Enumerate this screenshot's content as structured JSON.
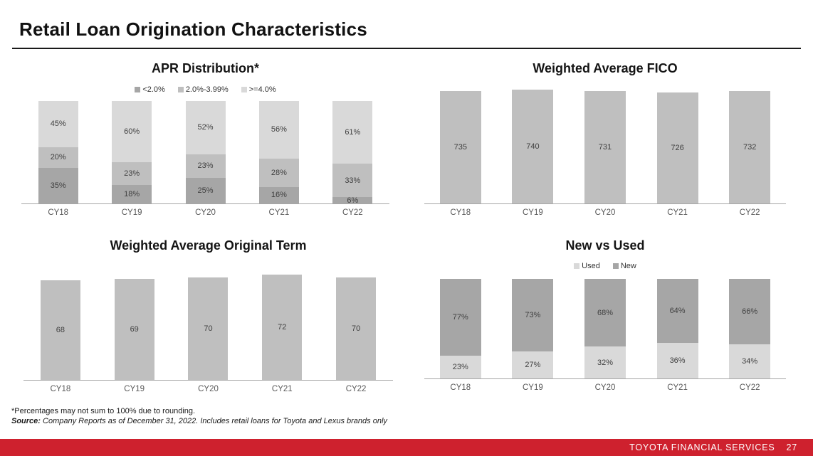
{
  "slide": {
    "title": "Retail Loan Origination Characteristics",
    "footnote": "*Percentages may not sum to 100% due to rounding.",
    "source_label": "Source:",
    "source_text": " Company Reports as of December 31, 2022. Includes retail loans for Toyota and Lexus brands only",
    "footer_brand": "TOYOTA FINANCIAL SERVICES",
    "page_number": "27",
    "accent_red": "#ce212e"
  },
  "colors": {
    "dark": "#a6a6a6",
    "mid": "#bfbfbf",
    "light": "#d9d9d9",
    "bar": "#bfbfbf",
    "axis": "#a6a6a6",
    "value_label": "#404040",
    "tick_label": "#595959"
  },
  "chart_data": [
    {
      "id": "apr",
      "type": "bar",
      "stacked": true,
      "percent": true,
      "title": "APR Distribution*",
      "legend_position": "top",
      "value_suffix": "%",
      "categories": [
        "CY18",
        "CY19",
        "CY20",
        "CY21",
        "CY22"
      ],
      "series": [
        {
          "name": "<2.0%",
          "color_key": "dark",
          "values": [
            35,
            18,
            25,
            16,
            6
          ]
        },
        {
          "name": "2.0%-3.99%",
          "color_key": "mid",
          "values": [
            20,
            23,
            23,
            28,
            33
          ]
        },
        {
          "name": ">=4.0%",
          "color_key": "light",
          "values": [
            45,
            60,
            52,
            56,
            61
          ]
        }
      ]
    },
    {
      "id": "fico",
      "type": "bar",
      "stacked": false,
      "title": "Weighted Average FICO",
      "legend_position": "none",
      "value_suffix": "",
      "ylim": [
        0,
        770
      ],
      "categories": [
        "CY18",
        "CY19",
        "CY20",
        "CY21",
        "CY22"
      ],
      "series": [
        {
          "name": "Weighted Average FICO",
          "color_key": "bar",
          "values": [
            735,
            740,
            731,
            726,
            732
          ]
        }
      ]
    },
    {
      "id": "term",
      "type": "bar",
      "stacked": false,
      "title": "Weighted Average Original Term",
      "legend_position": "none",
      "value_suffix": "",
      "ylim": [
        0,
        75
      ],
      "categories": [
        "CY18",
        "CY19",
        "CY20",
        "CY21",
        "CY22"
      ],
      "series": [
        {
          "name": "Weighted Average Original Term",
          "color_key": "bar",
          "values": [
            68,
            69,
            70,
            72,
            70
          ]
        }
      ]
    },
    {
      "id": "nvu",
      "type": "bar",
      "stacked": true,
      "percent": true,
      "title": "New vs Used",
      "legend_position": "top",
      "value_suffix": "%",
      "categories": [
        "CY18",
        "CY19",
        "CY20",
        "CY21",
        "CY22"
      ],
      "series": [
        {
          "name": "Used",
          "color_key": "light",
          "values": [
            23,
            27,
            32,
            36,
            34
          ]
        },
        {
          "name": "New",
          "color_key": "dark",
          "values": [
            77,
            73,
            68,
            64,
            66
          ]
        }
      ]
    }
  ]
}
